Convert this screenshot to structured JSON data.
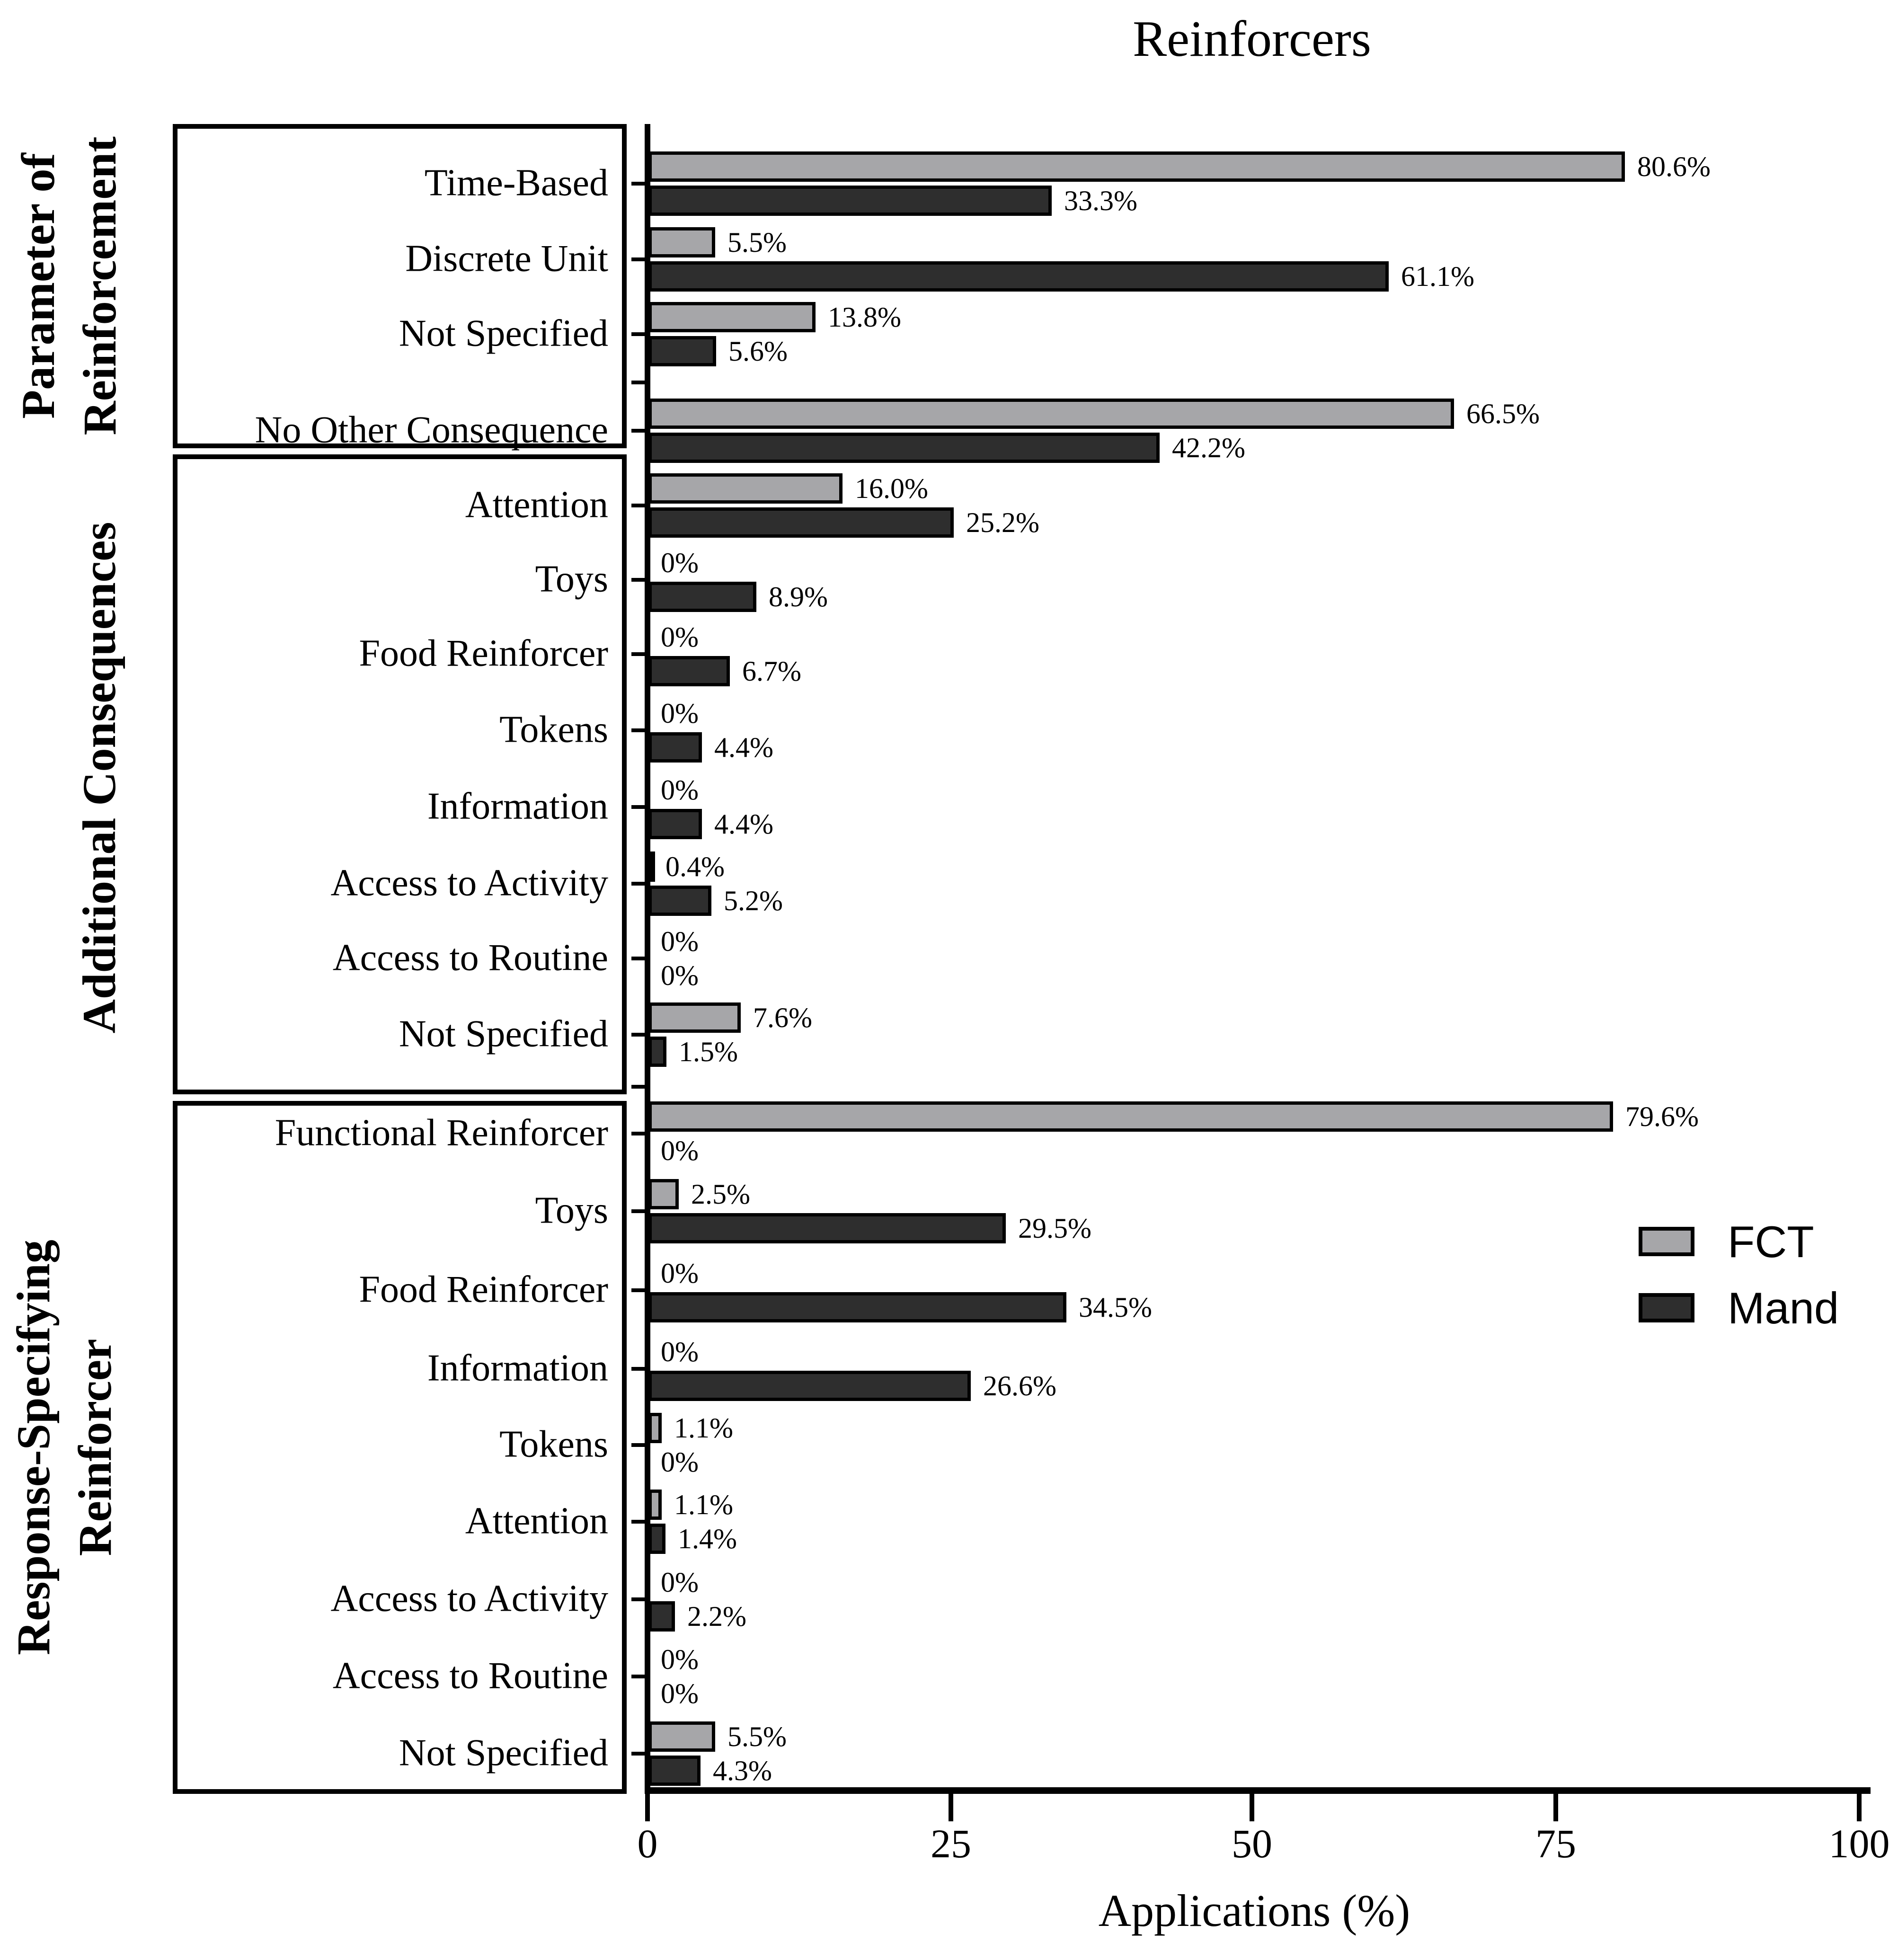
{
  "title": "Reinforcers",
  "xlabel": "Applications (%)",
  "legend": {
    "fct": "FCT",
    "mand": "Mand"
  },
  "colors": {
    "fct": "#a6a6a9",
    "mand": "#2e2e2e",
    "axis": "#000000",
    "background": "#ffffff"
  },
  "chart_data": {
    "type": "bar",
    "orientation": "horizontal",
    "title": "Reinforcers",
    "xlabel": "Applications (%)",
    "xlim": [
      0,
      100
    ],
    "x_ticks": [
      0,
      25,
      50,
      75,
      100
    ],
    "x_tick_labels": [
      "0",
      "25",
      "50",
      "75",
      "100"
    ],
    "grid": false,
    "legend_position": "right",
    "series": [
      {
        "name": "FCT",
        "color": "#a6a6a9"
      },
      {
        "name": "Mand",
        "color": "#2e2e2e"
      }
    ],
    "groups": [
      {
        "label": "Parameter of\nReinforcement",
        "rows": [
          {
            "category": "Time-Based",
            "fct": 80.6,
            "fct_label": "80.6%",
            "mand": 33.3,
            "mand_label": "33.3%"
          },
          {
            "category": "Discrete Unit",
            "fct": 5.5,
            "fct_label": "5.5%",
            "mand": 61.1,
            "mand_label": "61.1%"
          },
          {
            "category": "Not Specified",
            "fct": 13.8,
            "fct_label": "13.8%",
            "mand": 5.6,
            "mand_label": "5.6%"
          },
          {
            "category": "No Other Consequence",
            "fct": 66.5,
            "fct_label": "66.5%",
            "mand": 42.2,
            "mand_label": "42.2%"
          }
        ]
      },
      {
        "label": "Additional Consequences",
        "rows": [
          {
            "category": "Attention",
            "fct": 16.0,
            "fct_label": "16.0%",
            "mand": 25.2,
            "mand_label": "25.2%"
          },
          {
            "category": "Toys",
            "fct": 0,
            "fct_label": "0%",
            "mand": 8.9,
            "mand_label": "8.9%"
          },
          {
            "category": "Food Reinforcer",
            "fct": 0,
            "fct_label": "0%",
            "mand": 6.7,
            "mand_label": "6.7%"
          },
          {
            "category": "Tokens",
            "fct": 0,
            "fct_label": "0%",
            "mand": 4.4,
            "mand_label": "4.4%"
          },
          {
            "category": "Information",
            "fct": 0,
            "fct_label": "0%",
            "mand": 4.4,
            "mand_label": "4.4%"
          },
          {
            "category": "Access to Activity",
            "fct": 0.4,
            "fct_label": "0.4%",
            "mand": 5.2,
            "mand_label": "5.2%"
          },
          {
            "category": "Access to Routine",
            "fct": 0,
            "fct_label": "0%",
            "mand": 0,
            "mand_label": "0%"
          },
          {
            "category": "Not Specified",
            "fct": 7.6,
            "fct_label": "7.6%",
            "mand": 1.5,
            "mand_label": "1.5%"
          }
        ]
      },
      {
        "label": "Response-Specifying\nReinforcer",
        "rows": [
          {
            "category": "Functional Reinforcer",
            "fct": 79.6,
            "fct_label": "79.6%",
            "mand": 0,
            "mand_label": "0%"
          },
          {
            "category": "Toys",
            "fct": 2.5,
            "fct_label": "2.5%",
            "mand": 29.5,
            "mand_label": "29.5%"
          },
          {
            "category": "Food Reinforcer",
            "fct": 0,
            "fct_label": "0%",
            "mand": 34.5,
            "mand_label": "34.5%"
          },
          {
            "category": "Information",
            "fct": 0,
            "fct_label": "0%",
            "mand": 26.6,
            "mand_label": "26.6%"
          },
          {
            "category": "Tokens",
            "fct": 1.1,
            "fct_label": "1.1%",
            "mand": 0,
            "mand_label": "0%"
          },
          {
            "category": "Attention",
            "fct": 1.1,
            "fct_label": "1.1%",
            "mand": 1.4,
            "mand_label": "1.4%"
          },
          {
            "category": "Access to Activity",
            "fct": 0,
            "fct_label": "0%",
            "mand": 2.2,
            "mand_label": "2.2%"
          },
          {
            "category": "Access to Routine",
            "fct": 0,
            "fct_label": "0%",
            "mand": 0,
            "mand_label": "0%"
          },
          {
            "category": "Not Specified",
            "fct": 5.5,
            "fct_label": "5.5%",
            "mand": 4.3,
            "mand_label": "4.3%"
          }
        ]
      }
    ]
  }
}
